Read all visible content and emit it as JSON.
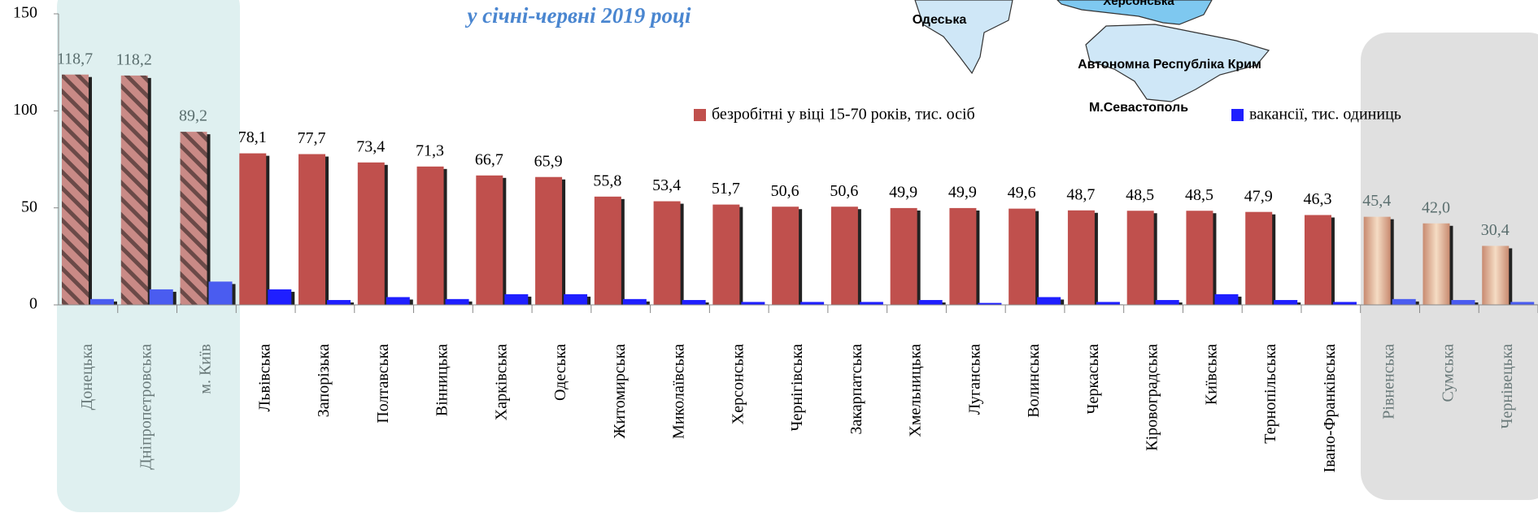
{
  "chart_data": {
    "type": "bar",
    "subtitle": "у січні-червні 2019 році",
    "annotations": [
      "Херсонська",
      "Одеська",
      "Автономна Республіка Крим",
      "М.Севастополь"
    ],
    "categories": [
      "Донецька",
      "Дніпропетровська",
      "м. Київ",
      "Львівська",
      "Запорізька",
      "Полтавська",
      "Вінницька",
      "Харківська",
      "Одеська",
      "Житомирська",
      "Миколаївська",
      "Херсонська",
      "Чернігівська",
      "Закарпатська",
      "Хмельницька",
      "Луганська",
      "Волинська",
      "Черкаська",
      "Кіровоградська",
      "Київська",
      "Тернопільська",
      "Івано-Франківська",
      "Рівненська",
      "Сумська",
      "Чернівецька"
    ],
    "series": [
      {
        "name": "безробітні у віці 15-70 років, тис. осіб",
        "color": "#c0504d",
        "values": [
          118.7,
          118.2,
          89.2,
          78.1,
          77.7,
          73.4,
          71.3,
          66.7,
          65.9,
          55.8,
          53.4,
          51.7,
          50.6,
          50.6,
          49.9,
          49.9,
          49.6,
          48.7,
          48.5,
          48.5,
          47.9,
          46.3,
          45.4,
          42.0,
          30.4
        ],
        "value_labels": [
          "118,7",
          "118,2",
          "89,2",
          "78,1",
          "77,7",
          "73,4",
          "71,3",
          "66,7",
          "65,9",
          "55,8",
          "53,4",
          "51,7",
          "50,6",
          "50,6",
          "49,9",
          "49,9",
          "49,6",
          "48,7",
          "48,5",
          "48,5",
          "47,9",
          "46,3",
          "45,4",
          "42,0",
          "30,4"
        ]
      },
      {
        "name": "вакансії, тис. одиниць",
        "color": "#1f1fff",
        "values": [
          3,
          8,
          12,
          8,
          2.5,
          4,
          3,
          5.5,
          5.5,
          3,
          2.5,
          1.5,
          1.5,
          1.5,
          2.5,
          1,
          4,
          1.5,
          2.5,
          5.5,
          2.5,
          1.5,
          3,
          2.5,
          1.5
        ]
      }
    ],
    "ylim": [
      0,
      150
    ],
    "yticks": [
      0,
      50,
      100,
      150
    ],
    "grid": false
  }
}
